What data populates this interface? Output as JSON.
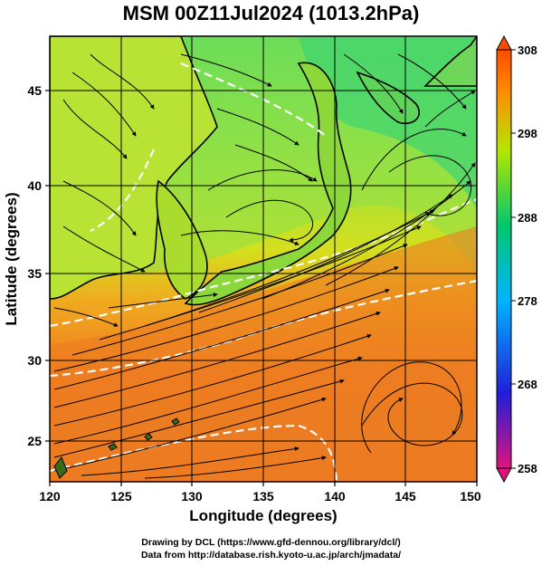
{
  "title": "MSM 00Z11Jul2024 (1013.2hPa)",
  "map": {
    "lon_range": [
      120,
      150
    ],
    "lat_range": [
      22.5,
      47.8
    ],
    "xlabel": "Longitude (degrees)",
    "ylabel": "Latitude  (degrees)",
    "x_ticks": [
      "120",
      "125",
      "130",
      "135",
      "140",
      "145",
      "150"
    ],
    "y_ticks": [
      "25",
      "30",
      "35",
      "40",
      "45"
    ],
    "field": "potential temperature shading with streamlines",
    "grid": true
  },
  "colorbar": {
    "labels": [
      "308",
      "298",
      "288",
      "278",
      "268",
      "258"
    ],
    "range": [
      258,
      308
    ],
    "colors": [
      "#e0137e",
      "#1f1fd9",
      "#00b4ff",
      "#00c86e",
      "#b4e600",
      "#ff8c00",
      "#ff4b00"
    ]
  },
  "credits": {
    "line1": "Drawing by DCL (https://www.gfd-dennou.org/library/dcl/)",
    "line2": "Data from http://database.rish.kyoto-u.ac.jp/arch/jmadata/"
  }
}
